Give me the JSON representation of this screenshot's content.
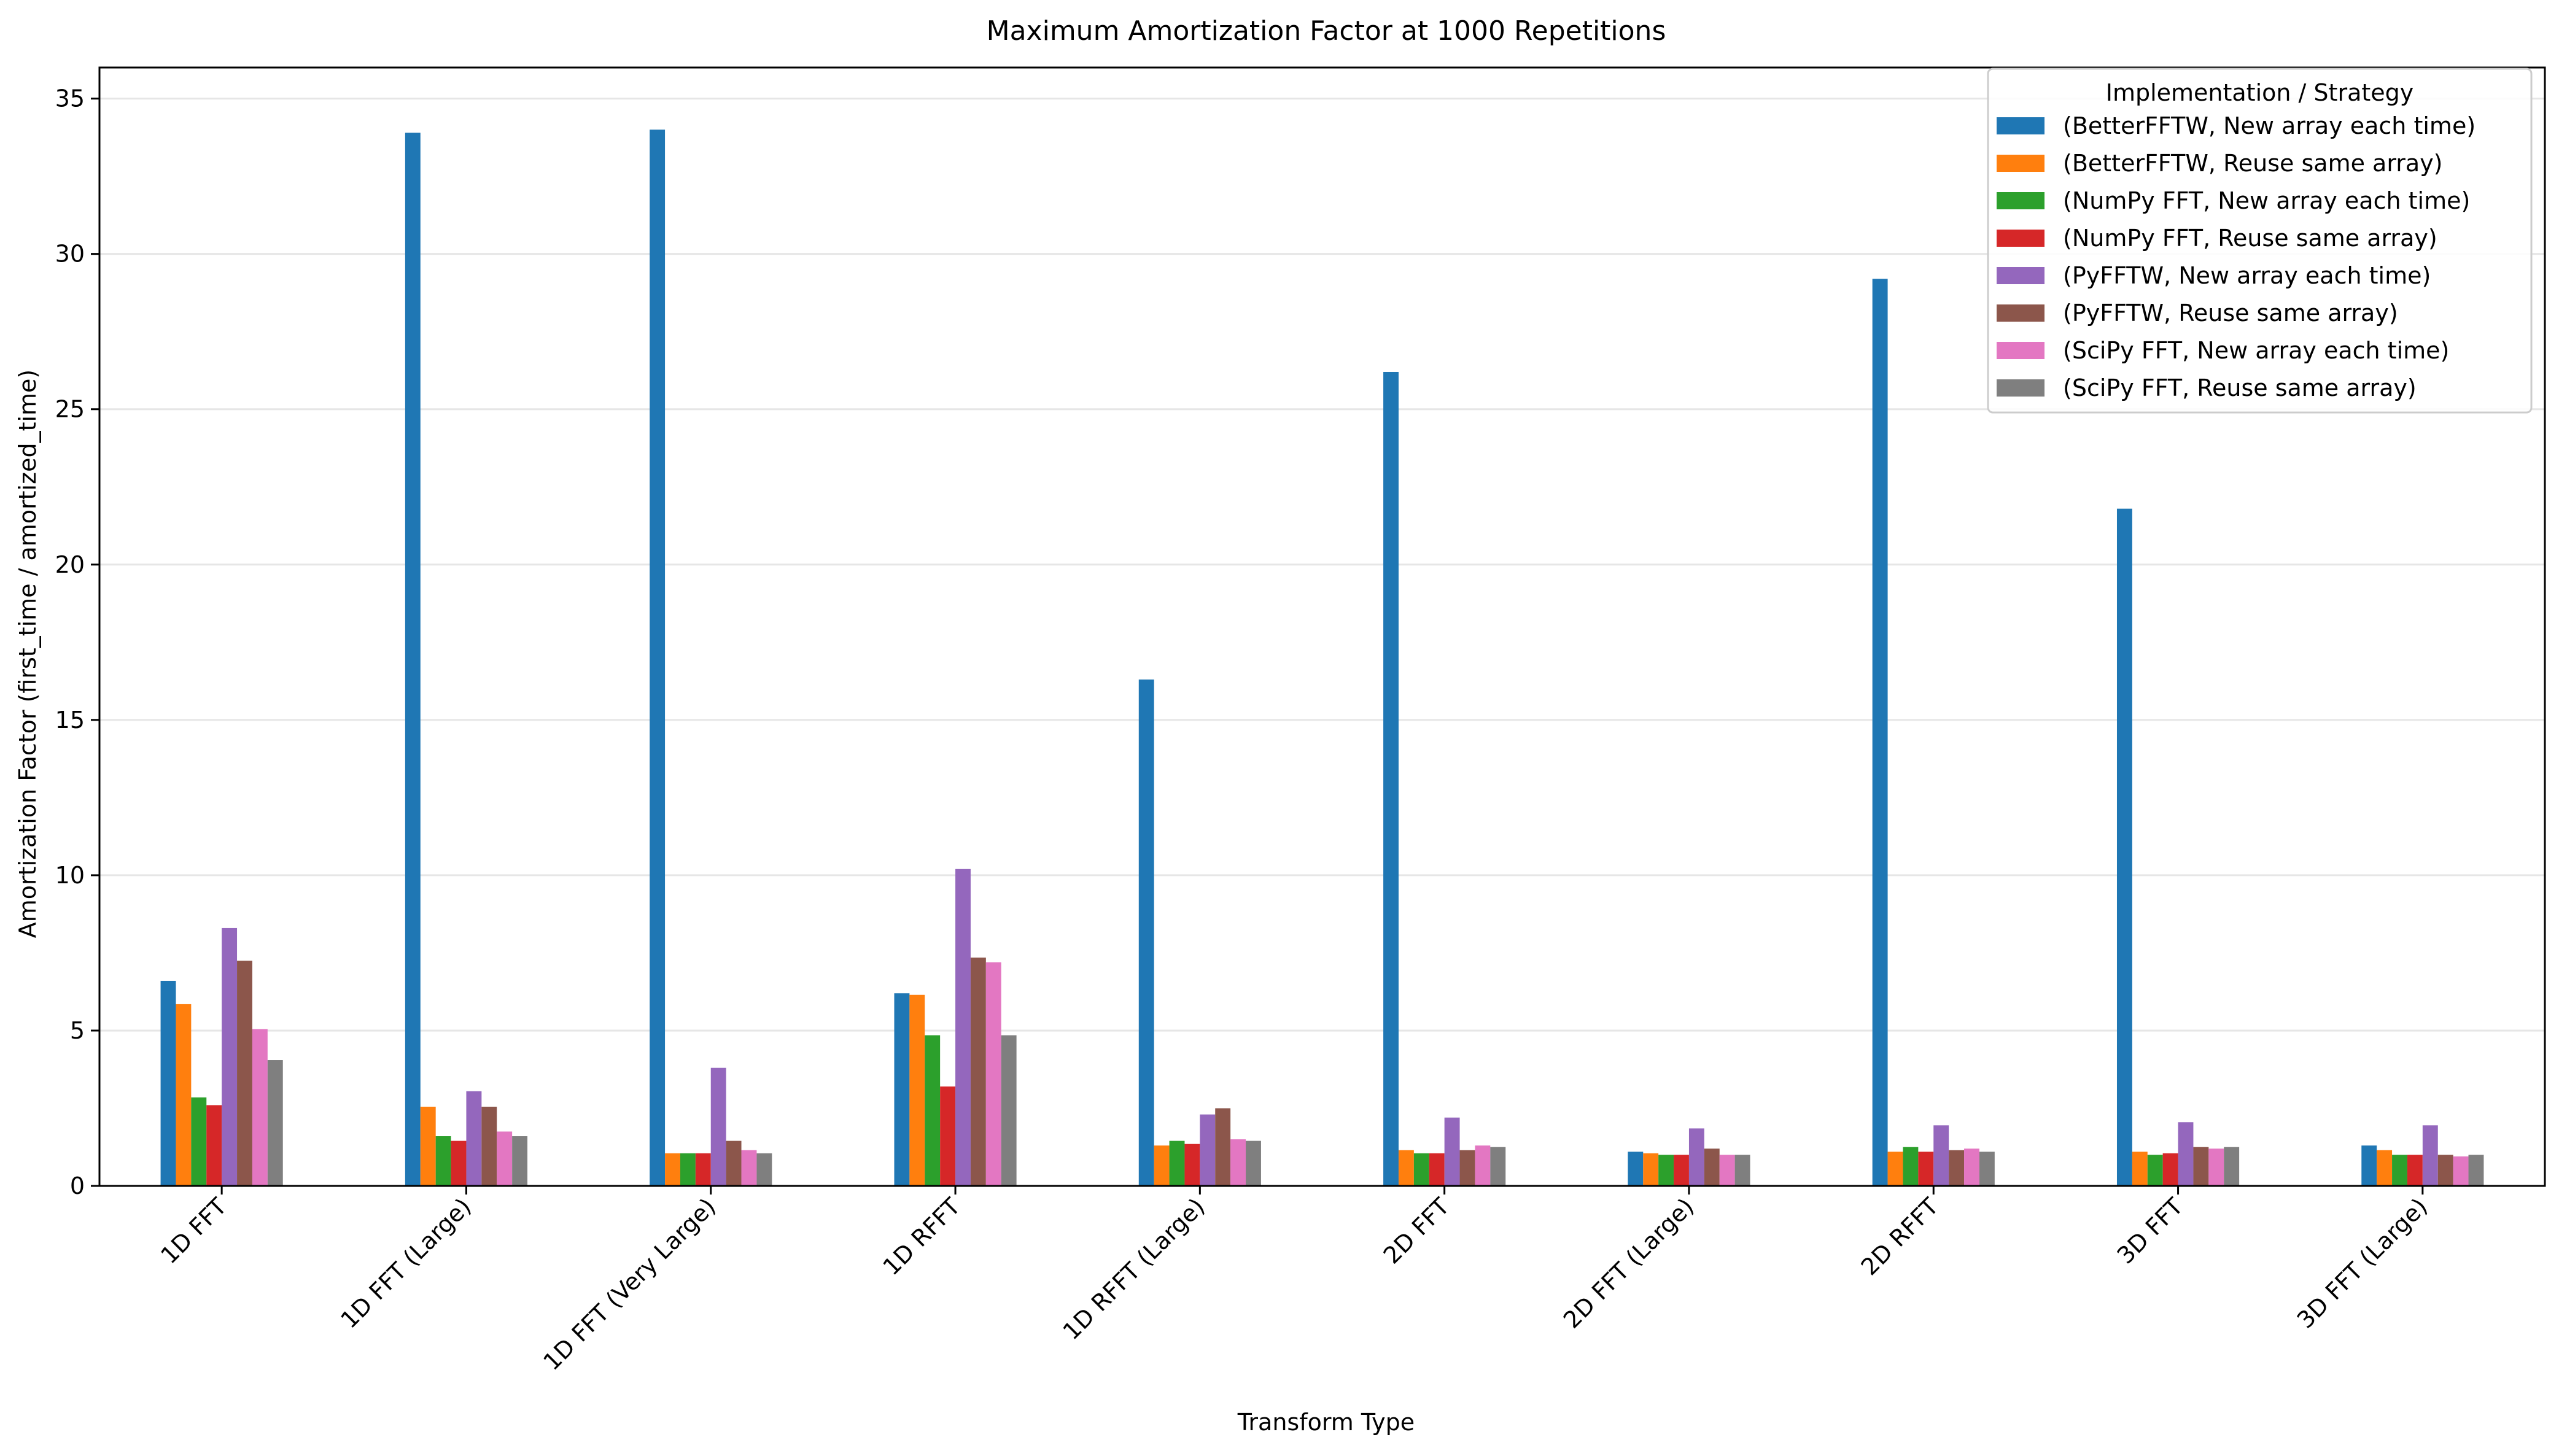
{
  "chart_data": {
    "type": "bar",
    "title": "Maximum Amortization Factor at 1000 Repetitions",
    "xlabel": "Transform Type",
    "ylabel": "Amortization Factor (first_time / amortized_time)",
    "ylim": [
      0,
      36
    ],
    "yticks": [
      0,
      5,
      10,
      15,
      20,
      25,
      30,
      35
    ],
    "grid": "horizontal",
    "legend_position": "top-right",
    "legend_title": "Implementation / Strategy",
    "categories": [
      "1D FFT",
      "1D FFT (Large)",
      "1D FFT (Very Large)",
      "1D RFFT",
      "1D RFFT (Large)",
      "2D FFT",
      "2D FFT (Large)",
      "2D RFFT",
      "3D FFT",
      "3D FFT (Large)"
    ],
    "series": [
      {
        "name": "(BetterFFTW, New array each time)",
        "color": "#1f77b4",
        "values": [
          6.6,
          33.9,
          34.0,
          6.2,
          16.3,
          26.2,
          1.1,
          29.2,
          21.8,
          1.3
        ]
      },
      {
        "name": "(BetterFFTW, Reuse same array)",
        "color": "#ff7f0e",
        "values": [
          5.85,
          2.55,
          1.05,
          6.15,
          1.3,
          1.15,
          1.05,
          1.1,
          1.1,
          1.15
        ]
      },
      {
        "name": "(NumPy FFT, New array each time)",
        "color": "#2ca02c",
        "values": [
          2.85,
          1.6,
          1.05,
          4.85,
          1.45,
          1.05,
          1.0,
          1.25,
          1.0,
          1.0
        ]
      },
      {
        "name": "(NumPy FFT, Reuse same array)",
        "color": "#d62728",
        "values": [
          2.6,
          1.45,
          1.05,
          3.2,
          1.35,
          1.05,
          1.0,
          1.1,
          1.05,
          1.0
        ]
      },
      {
        "name": "(PyFFTW, New array each time)",
        "color": "#9467bd",
        "values": [
          8.3,
          3.05,
          3.8,
          10.2,
          2.3,
          2.2,
          1.85,
          1.95,
          2.05,
          1.95
        ]
      },
      {
        "name": "(PyFFTW, Reuse same array)",
        "color": "#8c564b",
        "values": [
          7.25,
          2.55,
          1.45,
          7.35,
          2.5,
          1.15,
          1.2,
          1.15,
          1.25,
          1.0
        ]
      },
      {
        "name": "(SciPy FFT, New array each time)",
        "color": "#e377c2",
        "values": [
          5.05,
          1.75,
          1.15,
          7.2,
          1.5,
          1.3,
          1.0,
          1.2,
          1.2,
          0.95
        ]
      },
      {
        "name": "(SciPy FFT, Reuse same array)",
        "color": "#7f7f7f",
        "values": [
          4.05,
          1.6,
          1.05,
          4.85,
          1.45,
          1.25,
          1.0,
          1.1,
          1.25,
          1.0
        ]
      }
    ]
  }
}
